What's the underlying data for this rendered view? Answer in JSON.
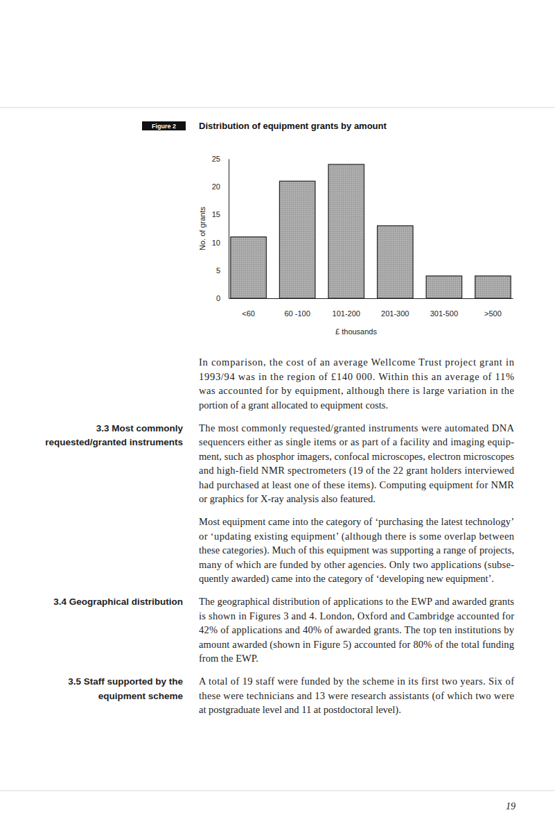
{
  "chart_data": {
    "type": "bar",
    "title": "Distribution of equipment grants by amount",
    "x_label": "£ thousands",
    "y_label": "No. of grants",
    "categories": [
      "<60",
      "60 -100",
      "101-200",
      "201-300",
      "301-500",
      ">500"
    ],
    "values": [
      11,
      21,
      24,
      13,
      4,
      4
    ],
    "color": "#a9a9a9",
    "ylim": [
      0,
      25
    ],
    "yticks": [
      0,
      5,
      10,
      15,
      20,
      25
    ],
    "grid": false
  },
  "document": {
    "figure_label": "Figure 2",
    "intro": {
      "lines": [
        "In comparison, the cost of an average Wellcome Trust project grant in",
        "1993/94 was in the region of £140 000. Within this an average of 11%",
        "was accounted for by equipment, although there is large variation in the",
        "portion of a grant allocated to equipment costs."
      ]
    },
    "sections": [
      {
        "heading": [
          "3.3 Most commonly",
          "requested/granted instruments"
        ],
        "paragraphs": [
          {
            "lines": [
              "The most commonly requested/granted instruments were automated DNA",
              "sequencers either as single items or as part of a facility and imaging equip-",
              "ment, such as phosphor imagers, confocal microscopes, electron microscopes",
              "and high-field NMR spectrometers (19 of the 22 grant holders interviewed",
              "had purchased at least one of these items). Computing equipment for NMR",
              "or graphics for X-ray analysis also featured."
            ]
          },
          {
            "lines": [
              "Most equipment came into the category of ‘purchasing the latest technology’",
              "or ‘updating existing equipment’ (although there is some overlap between",
              "these categories). Much of this equipment was supporting a range of projects,",
              "many of which are funded by other agencies. Only two applications (subse-",
              "quently awarded) came into the category of ‘developing new equipment’."
            ]
          }
        ]
      },
      {
        "heading": [
          "3.4 Geographical distribution"
        ],
        "paragraphs": [
          {
            "lines": [
              "The geographical distribution of applications to the EWP and awarded grants",
              "is shown in Figures 3 and 4. London, Oxford and Cambridge accounted for",
              "42% of applications and 40% of awarded grants. The top ten institutions by",
              "amount awarded (shown in Figure 5) accounted for 80% of the total funding",
              "from the EWP."
            ]
          }
        ]
      },
      {
        "heading": [
          "3.5 Staff supported by the",
          "equipment scheme"
        ],
        "paragraphs": [
          {
            "lines": [
              "A total of 19 staff were funded by the scheme in its first two years. Six of",
              "these were technicians and 13 were research assistants (of which two were",
              "at postgraduate level and 11 at postdoctoral level)."
            ]
          }
        ]
      }
    ],
    "page_number": "19"
  }
}
